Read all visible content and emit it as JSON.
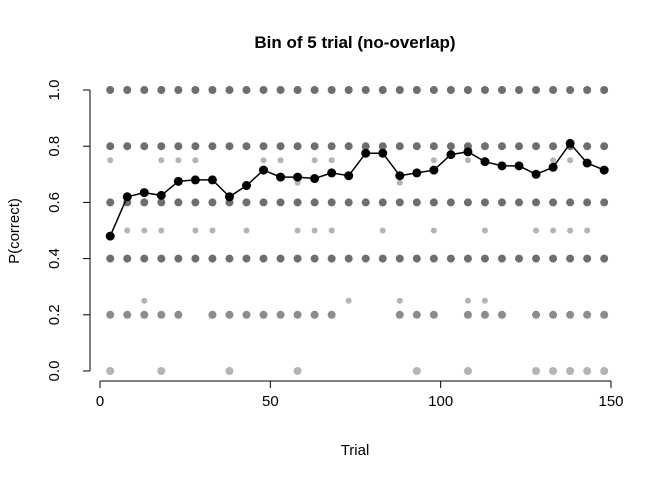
{
  "chart_data": {
    "type": "scatter",
    "title": "Bin of 5 trial (no-overlap)",
    "xlabel": "Trial",
    "ylabel": "P(correct)",
    "xlim": [
      0,
      150
    ],
    "ylim": [
      0,
      1
    ],
    "xticks": [
      "0",
      "50",
      "100",
      "150"
    ],
    "yticks": [
      "0.0",
      "0.2",
      "0.4",
      "0.6",
      "0.8",
      "1.0"
    ],
    "grid": false,
    "colors": {
      "mean": "#000000",
      "dots_dark": "#6e6e6e",
      "dots_mid": "#8c8c8c",
      "dots_light": "#b4b4b4"
    },
    "individual_points": {
      "x": [
        3,
        8,
        13,
        18,
        23,
        28,
        33,
        38,
        43,
        48,
        53,
        58,
        63,
        68,
        73,
        78,
        83,
        88,
        93,
        98,
        103,
        108,
        113,
        118,
        123,
        128,
        133,
        138,
        143,
        148
      ],
      "levels_dark": [
        1.0,
        0.8,
        0.6,
        0.4
      ],
      "level_0_2": [
        3,
        8,
        13,
        18,
        23,
        33,
        38,
        43,
        48,
        53,
        58,
        63,
        68,
        88,
        93,
        98,
        108,
        113,
        118,
        128,
        133,
        138,
        143,
        148
      ],
      "level_0_0": [
        3,
        18,
        38,
        58,
        93,
        108,
        128,
        133,
        138,
        143,
        148
      ],
      "level_0_25": [
        13,
        73,
        88,
        108,
        113
      ],
      "level_0_5": [
        8,
        13,
        18,
        28,
        33,
        43,
        58,
        63,
        68,
        83,
        98,
        113,
        128,
        133,
        138,
        143
      ],
      "level_0_75": [
        3,
        18,
        23,
        28,
        48,
        53,
        63,
        68,
        98,
        108,
        133,
        138
      ],
      "level_0_67": [
        58,
        88
      ]
    },
    "series": [
      {
        "x": [
          3,
          8,
          13,
          18,
          23,
          28,
          33,
          38,
          43,
          48,
          53,
          58,
          63,
          68,
          73,
          78,
          83,
          88,
          93,
          98,
          103,
          108,
          113,
          118,
          123,
          128,
          133,
          138,
          143,
          148
        ],
        "values": [
          0.48,
          0.62,
          0.635,
          0.625,
          0.675,
          0.68,
          0.68,
          0.62,
          0.66,
          0.715,
          0.69,
          0.69,
          0.685,
          0.705,
          0.695,
          0.775,
          0.775,
          0.695,
          0.705,
          0.715,
          0.77,
          0.78,
          0.745,
          0.73,
          0.73,
          0.7,
          0.725,
          0.81,
          0.74,
          0.715
        ]
      }
    ]
  }
}
